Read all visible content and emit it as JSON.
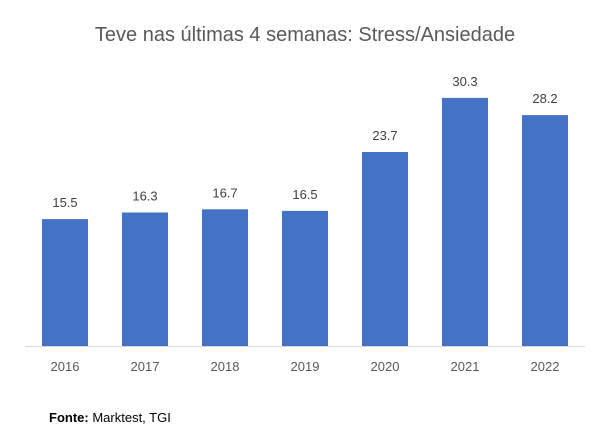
{
  "chart_data": {
    "type": "bar",
    "title": "Teve nas últimas 4 semanas: Stress/Ansiedade",
    "xlabel": "",
    "ylabel": "",
    "categories": [
      "2016",
      "2017",
      "2018",
      "2019",
      "2020",
      "2021",
      "2022"
    ],
    "values": [
      15.5,
      16.3,
      16.7,
      16.5,
      23.7,
      30.3,
      28.2
    ],
    "value_labels": [
      "15.5",
      "16.3",
      "16.7",
      "16.5",
      "23.7",
      "30.3",
      "28.2"
    ],
    "bar_color": "#4472C4",
    "ylim": [
      0,
      32
    ],
    "grid": false,
    "legend": "none"
  },
  "source": {
    "label": "Fonte:",
    "text": "Marktest, TGI"
  }
}
